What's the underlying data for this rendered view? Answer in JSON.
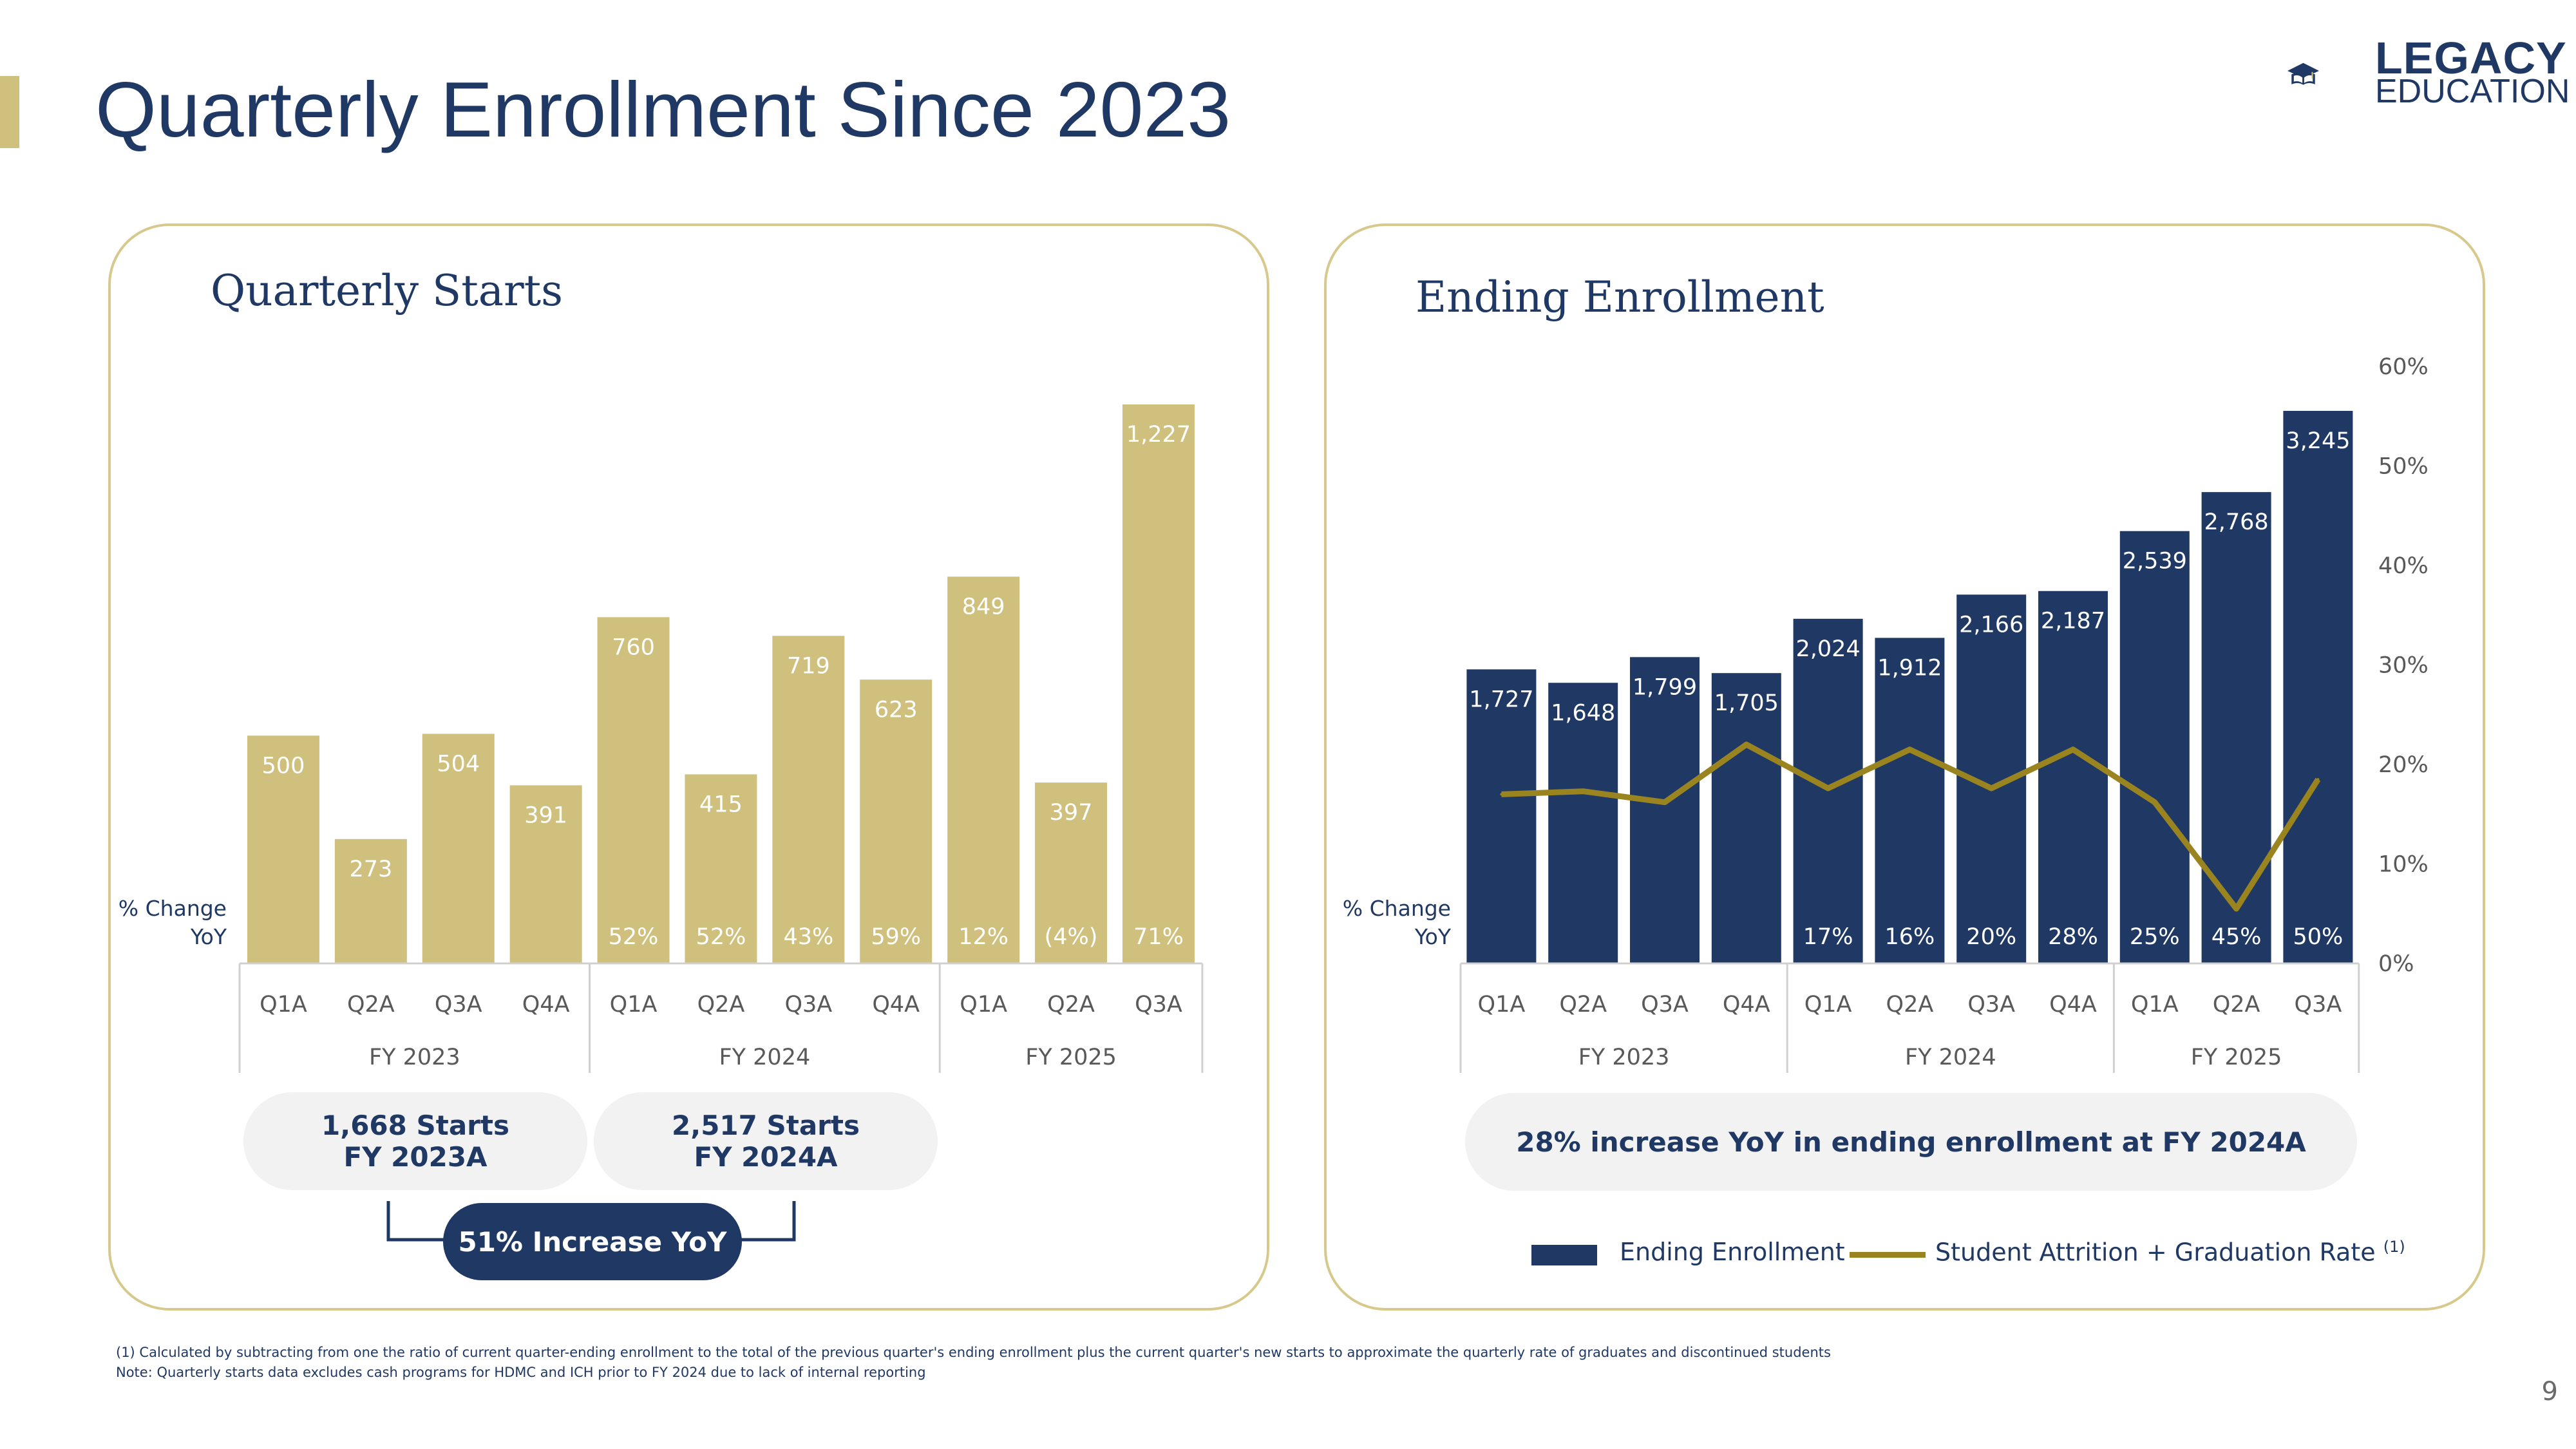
{
  "page_title": "Quarterly Enrollment Since 2023",
  "logo": {
    "line1": "LEGACY",
    "line2": "EDUCATION"
  },
  "page_number": "9",
  "colors": {
    "gold": "#cfc17d",
    "navy": "#1f3864",
    "line": "#9a8420",
    "pill_bg": "#f2f2f2"
  },
  "left_panel": {
    "title": "Quarterly Starts",
    "pct_change_label_1": "% Change",
    "pct_change_label_2": "YoY",
    "pill1_line1": "1,668 Starts",
    "pill1_line2": "FY 2023A",
    "pill2_line1": "2,517 Starts",
    "pill2_line2": "FY 2024A",
    "increase_label": "51% Increase YoY"
  },
  "right_panel": {
    "title": "Ending Enrollment",
    "pct_change_label_1": "% Change",
    "pct_change_label_2": "YoY",
    "pill_text": "28% increase YoY in ending enrollment at FY 2024A",
    "legend_bar": "Ending Enrollment",
    "legend_line": "Student Attrition + Graduation Rate",
    "legend_line_sup": "(1)"
  },
  "chart_data": [
    {
      "type": "bar",
      "title": "Quarterly Starts",
      "categories": [
        "Q1A",
        "Q2A",
        "Q3A",
        "Q4A",
        "Q1A",
        "Q2A",
        "Q3A",
        "Q4A",
        "Q1A",
        "Q2A",
        "Q3A"
      ],
      "groups": [
        {
          "label": "FY 2023",
          "start": 0,
          "end": 3
        },
        {
          "label": "FY 2024",
          "start": 4,
          "end": 7
        },
        {
          "label": "FY 2025",
          "start": 8,
          "end": 10
        }
      ],
      "values": [
        500,
        273,
        504,
        391,
        760,
        415,
        719,
        623,
        849,
        397,
        1227
      ],
      "value_labels": [
        "500",
        "273",
        "504",
        "391",
        "760",
        "415",
        "719",
        "623",
        "849",
        "397",
        "1,227"
      ],
      "pct_change_yoy": [
        "",
        "",
        "",
        "",
        "52%",
        "52%",
        "43%",
        "59%",
        "12%",
        "(4%)",
        "71%"
      ],
      "ylim": [
        0,
        1300
      ]
    },
    {
      "type": "bar+line",
      "title": "Ending Enrollment",
      "categories": [
        "Q1A",
        "Q2A",
        "Q3A",
        "Q4A",
        "Q1A",
        "Q2A",
        "Q3A",
        "Q4A",
        "Q1A",
        "Q2A",
        "Q3A"
      ],
      "groups": [
        {
          "label": "FY 2023",
          "start": 0,
          "end": 3
        },
        {
          "label": "FY 2024",
          "start": 4,
          "end": 7
        },
        {
          "label": "FY 2025",
          "start": 8,
          "end": 10
        }
      ],
      "series": [
        {
          "name": "Ending Enrollment",
          "values": [
            1727,
            1648,
            1799,
            1705,
            2024,
            1912,
            2166,
            2187,
            2539,
            2768,
            3245
          ],
          "value_labels": [
            "1,727",
            "1,648",
            "1,799",
            "1,705",
            "2,024",
            "1,912",
            "2,166",
            "2,187",
            "2,539",
            "2,768",
            "3,245"
          ]
        },
        {
          "name": "Student Attrition + Graduation Rate",
          "axis": "right",
          "values": [
            17,
            17.3,
            16.2,
            22,
            17.6,
            21.5,
            17.6,
            21.5,
            16.2,
            5.5,
            18.5
          ]
        }
      ],
      "pct_change_yoy": [
        "",
        "",
        "",
        "",
        "17%",
        "16%",
        "20%",
        "28%",
        "25%",
        "45%",
        "50%"
      ],
      "ylim": [
        0,
        3500
      ],
      "y2lim": [
        0,
        60
      ],
      "y2_ticks": [
        "0%",
        "10%",
        "20%",
        "30%",
        "40%",
        "50%",
        "60%"
      ]
    }
  ],
  "footnotes": {
    "note1": "(1)        Calculated by subtracting from one the ratio of current quarter-ending enrollment to the total of the previous quarter's ending enrollment plus the current quarter's new starts to approximate the quarterly rate of graduates and discontinued students",
    "note2": "Note: Quarterly starts data excludes cash programs for HDMC and ICH prior to FY 2024 due to lack of internal reporting"
  }
}
